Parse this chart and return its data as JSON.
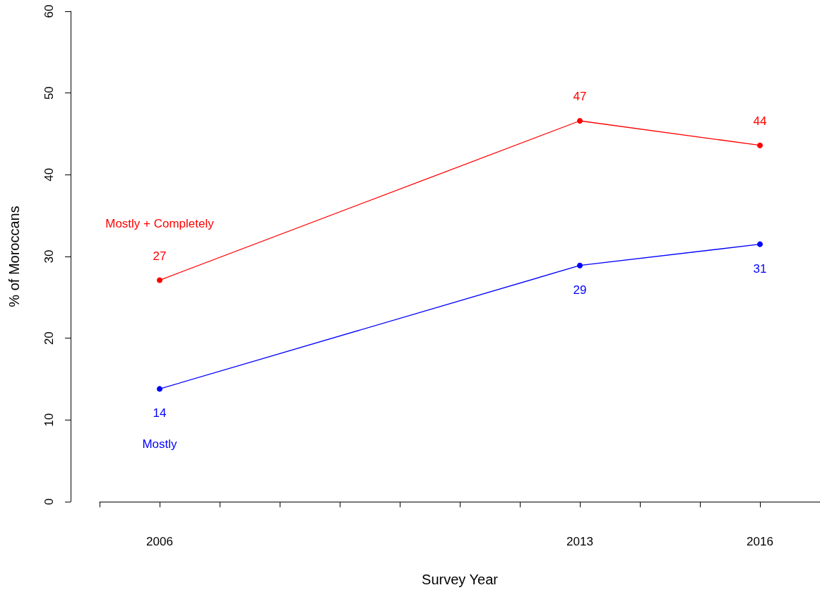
{
  "chart_data": {
    "type": "line",
    "xlabel": "Survey Year",
    "ylabel": "% of Moroccans",
    "x": [
      2006,
      2013,
      2016
    ],
    "series": [
      {
        "name": "Mostly + Completely",
        "color": "#ff0000",
        "values": [
          27.1,
          46.6,
          43.6
        ],
        "value_labels": [
          "27",
          "47",
          "44"
        ]
      },
      {
        "name": "Mostly",
        "color": "#0000ff",
        "values": [
          13.8,
          28.9,
          31.5
        ],
        "value_labels": [
          "14",
          "29",
          "31"
        ]
      }
    ],
    "xlim": [
      2005,
      2017
    ],
    "xticks": [
      {
        "value": 2005,
        "label": null
      },
      2006,
      {
        "value": 2007,
        "label": null
      },
      {
        "value": 2008,
        "label": null
      },
      {
        "value": 2009,
        "label": null
      },
      {
        "value": 2010,
        "label": null
      },
      {
        "value": 2011,
        "label": null
      },
      {
        "value": 2012,
        "label": null
      },
      2013,
      {
        "value": 2014,
        "label": null
      },
      {
        "value": 2015,
        "label": null
      },
      2016,
      {
        "value": 2017,
        "label": null
      }
    ],
    "ylim": [
      0,
      60
    ],
    "yticks": [
      0,
      10,
      20,
      30,
      40,
      50,
      60
    ],
    "marker": "circle"
  }
}
